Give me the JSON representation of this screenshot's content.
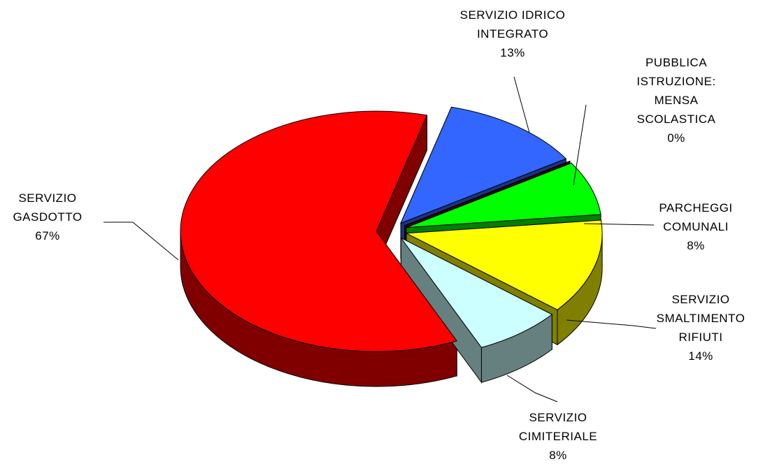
{
  "chart_data": {
    "type": "pie",
    "categories": [
      "SERVIZIO IDRICO INTEGRATO",
      "PUBBLICA ISTRUZIONE: MENSA SCOLASTICA",
      "PARCHEGGI COMUNALI",
      "SERVIZIO SMALTIMENTO RIFIUTI",
      "SERVIZIO CIMITERIALE",
      "SERVIZIO GASDOTTO"
    ],
    "values": [
      13,
      0,
      8,
      14,
      8,
      67
    ],
    "value_labels": [
      "13%",
      "0%",
      "8%",
      "14%",
      "8%",
      "67%"
    ],
    "colors": [
      "#3366ff",
      "#800000",
      "#00ff00",
      "#ffff00",
      "#ccffff",
      "#ff0000"
    ]
  }
}
